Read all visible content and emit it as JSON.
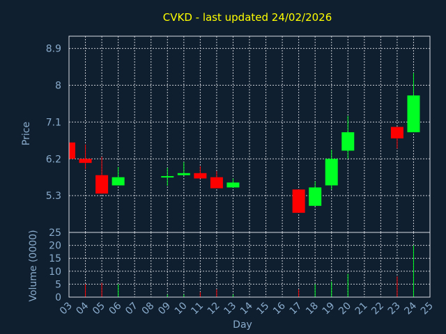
{
  "chart_data": {
    "type": "candlestick",
    "title": "CVKD - last updated 24/02/2026",
    "xlabel": "Day",
    "ylabel_price": "Price",
    "ylabel_volume": "Volume (0000)",
    "x_ticks": [
      "03",
      "04",
      "05",
      "06",
      "07",
      "08",
      "09",
      "10",
      "11",
      "12",
      "13",
      "14",
      "15",
      "16",
      "17",
      "18",
      "19",
      "20",
      "21",
      "22",
      "23",
      "24",
      "25"
    ],
    "price_ticks": [
      5.3,
      6.2,
      7.1,
      8,
      8.9
    ],
    "price_tick_labels": [
      "5.3",
      "6.2",
      "7.1",
      "8",
      "8.9"
    ],
    "price_range": [
      4.4,
      9.2
    ],
    "volume_ticks": [
      0,
      5,
      10,
      15,
      20,
      25
    ],
    "volume_tick_labels": [
      "0",
      "5",
      "10",
      "15",
      "20",
      "25"
    ],
    "volume_range": [
      0,
      25
    ],
    "x_range": [
      3,
      25
    ],
    "grid": true,
    "colors": {
      "background": "#0f1f30",
      "title": "#ffff00",
      "axis_text": "#8aaccc",
      "axis_line": "#d8dde5",
      "grid": "#c8ccd2",
      "up": "#00ff22",
      "down": "#ff0000"
    },
    "candles": [
      {
        "day": 3,
        "open": 6.6,
        "close": 6.2,
        "high": 6.6,
        "low": 6.2,
        "volume": 0
      },
      {
        "day": 4,
        "open": 6.2,
        "close": 6.1,
        "high": 6.55,
        "low": 5.95,
        "volume": 5
      },
      {
        "day": 5,
        "open": 5.8,
        "close": 5.35,
        "high": 6.25,
        "low": 5.35,
        "volume": 5.5
      },
      {
        "day": 6,
        "open": 5.55,
        "close": 5.75,
        "high": 6.0,
        "low": 5.55,
        "volume": 5
      },
      {
        "day": 9,
        "open": 5.74,
        "close": 5.76,
        "high": 5.98,
        "low": 5.54,
        "volume": 1
      },
      {
        "day": 10,
        "open": 5.8,
        "close": 5.85,
        "high": 6.12,
        "low": 5.8,
        "volume": 1
      },
      {
        "day": 11,
        "open": 5.85,
        "close": 5.72,
        "high": 6.02,
        "low": 5.72,
        "volume": 2
      },
      {
        "day": 12,
        "open": 5.75,
        "close": 5.48,
        "high": 5.9,
        "low": 5.48,
        "volume": 3
      },
      {
        "day": 13,
        "open": 5.5,
        "close": 5.62,
        "high": 5.72,
        "low": 5.5,
        "volume": 1
      },
      {
        "day": 17,
        "open": 5.45,
        "close": 4.88,
        "high": 5.45,
        "low": 4.88,
        "volume": 3
      },
      {
        "day": 18,
        "open": 5.05,
        "close": 5.5,
        "high": 5.65,
        "low": 5.05,
        "volume": 5
      },
      {
        "day": 19,
        "open": 5.55,
        "close": 6.2,
        "high": 6.42,
        "low": 5.45,
        "volume": 6
      },
      {
        "day": 20,
        "open": 6.4,
        "close": 6.85,
        "high": 7.25,
        "low": 6.2,
        "volume": 9
      },
      {
        "day": 23,
        "open": 6.98,
        "close": 6.7,
        "high": 6.98,
        "low": 6.45,
        "volume": 8
      },
      {
        "day": 24,
        "open": 6.85,
        "close": 7.75,
        "high": 8.3,
        "low": 6.85,
        "volume": 20
      }
    ]
  }
}
